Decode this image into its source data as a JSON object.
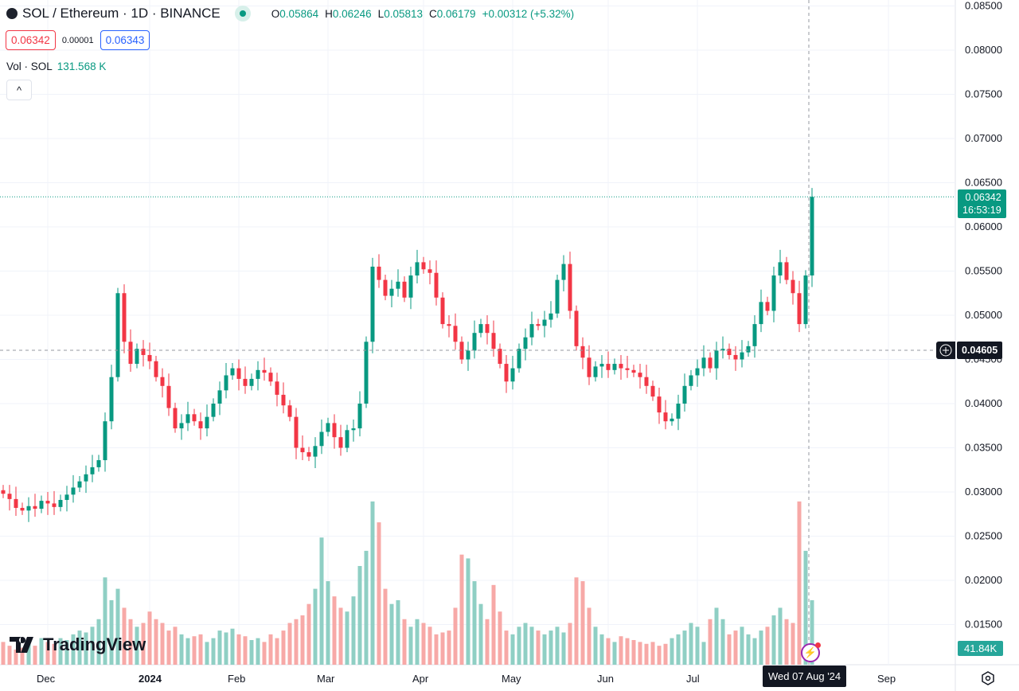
{
  "header": {
    "symbol": "SOL / Ethereum · 1D · BINANCE",
    "ohlc": [
      {
        "k": "O",
        "v": "0.05864"
      },
      {
        "k": "H",
        "v": "0.06246"
      },
      {
        "k": "L",
        "v": "0.05813"
      },
      {
        "k": "C",
        "v": "0.06179"
      }
    ],
    "change": "+0.00312 (+5.32%)"
  },
  "trade": {
    "sell": "0.06342",
    "spread": "0.00001",
    "buy": "0.06343"
  },
  "volume": {
    "label": "Vol · SOL",
    "value": "131.568 K"
  },
  "collapse_label": "^",
  "price_tag": {
    "price": "0.06342",
    "countdown": "16:53:19"
  },
  "crosshair": {
    "price": "0.04605",
    "date": "Wed 07 Aug '24"
  },
  "volume_tag": "41.84K",
  "logo": "TradingView",
  "colors": {
    "up": "#089981",
    "down": "#f23645",
    "up_vol": "#8fcfc4",
    "down_vol": "#f7a9a7"
  },
  "chart_data": {
    "type": "candlestick",
    "title": "SOL / Ethereum · 1D · BINANCE",
    "ylim": [
      0.0115,
      0.0865
    ],
    "yticks": [
      "0.08500",
      "0.08000",
      "0.07500",
      "0.07000",
      "0.06500",
      "0.06000",
      "0.05500",
      "0.05000",
      "0.04500",
      "0.04000",
      "0.03500",
      "0.03000",
      "0.02500",
      "0.02000",
      "0.01500"
    ],
    "xticks": [
      {
        "label": "Dec",
        "i": 7
      },
      {
        "label": "2024",
        "i": 23
      },
      {
        "label": "Feb",
        "i": 37
      },
      {
        "label": "Mar",
        "i": 51
      },
      {
        "label": "Apr",
        "i": 66
      },
      {
        "label": "May",
        "i": 80
      },
      {
        "label": "Jun",
        "i": 95
      },
      {
        "label": "Jul",
        "i": 109
      },
      {
        "label": "Sep",
        "i": 139
      }
    ],
    "open_first": 0.0302,
    "closes": [
      0.0298,
      0.0292,
      0.0282,
      0.0279,
      0.0284,
      0.0281,
      0.029,
      0.0287,
      0.0283,
      0.0291,
      0.0297,
      0.0305,
      0.0312,
      0.032,
      0.0328,
      0.0336,
      0.038,
      0.043,
      0.0525,
      0.047,
      0.0445,
      0.0462,
      0.0455,
      0.0448,
      0.043,
      0.042,
      0.0395,
      0.0372,
      0.0378,
      0.0388,
      0.038,
      0.0372,
      0.0385,
      0.04,
      0.0415,
      0.0432,
      0.044,
      0.0428,
      0.042,
      0.0428,
      0.0438,
      0.0435,
      0.0425,
      0.041,
      0.0398,
      0.0385,
      0.035,
      0.0345,
      0.034,
      0.0352,
      0.0368,
      0.0378,
      0.0362,
      0.035,
      0.037,
      0.0372,
      0.04,
      0.047,
      0.0555,
      0.054,
      0.0522,
      0.053,
      0.0538,
      0.052,
      0.0545,
      0.056,
      0.0552,
      0.0548,
      0.052,
      0.049,
      0.0488,
      0.047,
      0.045,
      0.046,
      0.048,
      0.049,
      0.048,
      0.0462,
      0.0445,
      0.0425,
      0.044,
      0.0462,
      0.0475,
      0.049,
      0.0488,
      0.0495,
      0.0502,
      0.054,
      0.0558,
      0.0505,
      0.0465,
      0.0452,
      0.043,
      0.0442,
      0.0445,
      0.0438,
      0.0445,
      0.044,
      0.0438,
      0.0435,
      0.043,
      0.042,
      0.0408,
      0.039,
      0.038,
      0.0383,
      0.04,
      0.042,
      0.0432,
      0.044,
      0.0452,
      0.044,
      0.046,
      0.0462,
      0.0455,
      0.045,
      0.0458,
      0.0465,
      0.049,
      0.0515,
      0.0505,
      0.0545,
      0.056,
      0.054,
      0.0525,
      0.049,
      0.0545,
      0.0634
    ],
    "volumes_k": [
      60,
      50,
      40,
      45,
      55,
      50,
      70,
      60,
      55,
      70,
      65,
      80,
      90,
      85,
      100,
      120,
      230,
      170,
      200,
      150,
      120,
      100,
      110,
      140,
      120,
      110,
      90,
      100,
      80,
      70,
      75,
      80,
      60,
      70,
      90,
      85,
      95,
      80,
      75,
      65,
      70,
      60,
      80,
      70,
      90,
      110,
      120,
      130,
      160,
      200,
      335,
      220,
      180,
      150,
      140,
      180,
      260,
      300,
      430,
      375,
      200,
      160,
      170,
      120,
      100,
      120,
      110,
      100,
      80,
      85,
      90,
      150,
      290,
      280,
      220,
      160,
      120,
      210,
      140,
      90,
      80,
      100,
      110,
      100,
      90,
      80,
      90,
      100,
      85,
      110,
      230,
      220,
      150,
      100,
      80,
      70,
      60,
      75,
      70,
      65,
      60,
      55,
      60,
      50,
      55,
      70,
      80,
      90,
      110,
      100,
      60,
      120,
      150,
      120,
      80,
      90,
      100,
      80,
      70,
      90,
      100,
      130,
      150,
      120,
      110,
      430,
      300,
      170
    ]
  }
}
